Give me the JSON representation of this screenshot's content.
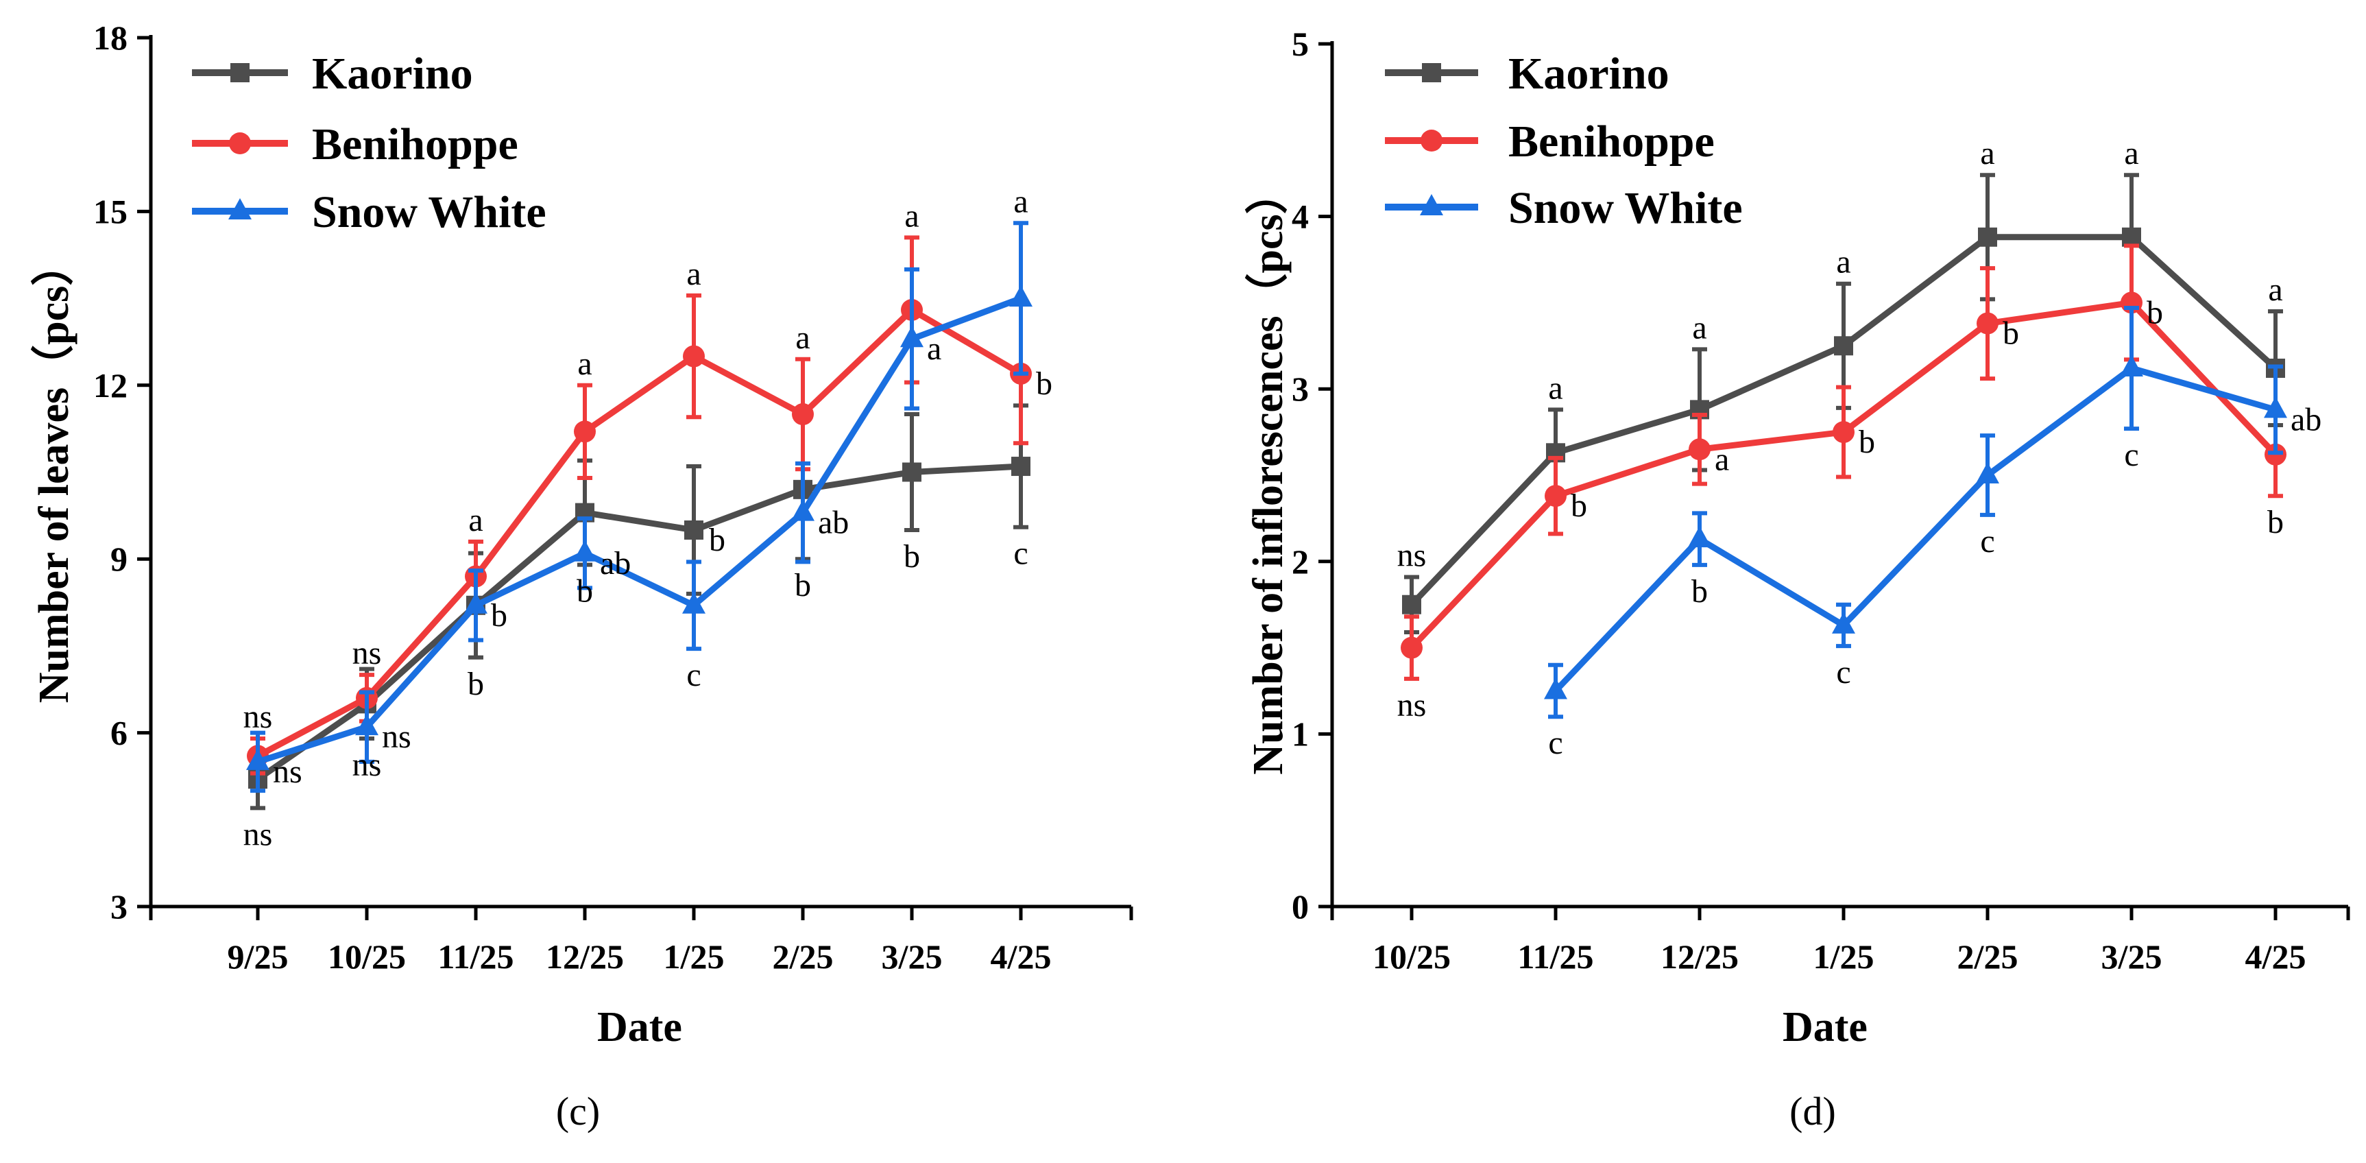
{
  "chart_data": [
    {
      "type": "line",
      "caption": "(c)",
      "xlabel": "Date",
      "ylabel": "Number of leaves（pcs）",
      "ylim": [
        3,
        18
      ],
      "yticks": [
        3,
        6,
        9,
        12,
        15,
        18
      ],
      "categories": [
        "9/25",
        "10/25",
        "11/25",
        "12/25",
        "1/25",
        "2/25",
        "3/25",
        "4/25"
      ],
      "legend": "top-left",
      "grid": false,
      "series": [
        {
          "name": "Kaorino",
          "color": "#4d4d4d",
          "marker": "square",
          "values": [
            5.2,
            6.5,
            8.2,
            9.8,
            9.5,
            10.2,
            10.5,
            10.6
          ],
          "errors": [
            0.5,
            0.6,
            0.9,
            0.9,
            1.1,
            1.2,
            1.0,
            1.05
          ]
        },
        {
          "name": "Benihoppe",
          "color": "#ef3b3b",
          "marker": "circle",
          "values": [
            5.6,
            6.6,
            8.7,
            11.2,
            12.5,
            11.5,
            13.3,
            12.2
          ],
          "errors": [
            0.3,
            0.4,
            0.6,
            0.8,
            1.05,
            0.95,
            1.25,
            1.2
          ]
        },
        {
          "name": "Snow White",
          "color": "#1a6fe0",
          "marker": "triangle",
          "values": [
            5.5,
            6.1,
            8.2,
            9.1,
            8.2,
            9.8,
            12.8,
            13.5
          ],
          "errors": [
            0.5,
            0.6,
            0.6,
            0.6,
            0.75,
            0.85,
            1.2,
            1.3
          ]
        }
      ],
      "annotations": [
        [
          "ns",
          "ns",
          "ns"
        ],
        [
          "ns",
          "ns",
          "ns"
        ],
        [
          "b",
          "a",
          "b"
        ],
        [
          "b",
          "a",
          "ab"
        ],
        [
          "b",
          "a",
          "c"
        ],
        [
          "b",
          "a",
          "ab"
        ],
        [
          "b",
          "a",
          "a"
        ],
        [
          "c",
          "b",
          "a"
        ]
      ],
      "annotation_pos": [
        [
          "below",
          "above",
          "right"
        ],
        [
          "below",
          "above",
          "right"
        ],
        [
          "below",
          "above",
          "right"
        ],
        [
          "below",
          "above",
          "right"
        ],
        [
          "right",
          "above",
          "below"
        ],
        [
          "below",
          "above",
          "right"
        ],
        [
          "below",
          "above",
          "right"
        ],
        [
          "below",
          "right",
          "above"
        ]
      ]
    },
    {
      "type": "line",
      "caption": "(d)",
      "xlabel": "Date",
      "ylabel": "Number of inflorescences（pcs）",
      "ylim": [
        0,
        5
      ],
      "yticks": [
        0,
        1,
        2,
        3,
        4,
        5
      ],
      "categories": [
        "10/25",
        "11/25",
        "12/25",
        "1/25",
        "2/25",
        "3/25",
        "4/25"
      ],
      "legend": "top-left",
      "grid": false,
      "series": [
        {
          "name": "Kaorino",
          "color": "#4d4d4d",
          "marker": "square",
          "values": [
            1.75,
            2.63,
            2.88,
            3.25,
            3.88,
            3.88,
            3.12
          ],
          "errors": [
            0.16,
            0.25,
            0.35,
            0.36,
            0.36,
            0.36,
            0.33
          ]
        },
        {
          "name": "Benihoppe",
          "color": "#ef3b3b",
          "marker": "circle",
          "values": [
            1.5,
            2.38,
            2.65,
            2.75,
            3.38,
            3.5,
            2.62
          ],
          "errors": [
            0.18,
            0.22,
            0.2,
            0.26,
            0.32,
            0.33,
            0.24
          ]
        },
        {
          "name": "Snow White",
          "color": "#1a6fe0",
          "marker": "triangle",
          "values": [
            null,
            1.25,
            2.13,
            1.63,
            2.5,
            3.12,
            2.88
          ],
          "errors": [
            null,
            0.15,
            0.15,
            0.12,
            0.23,
            0.35,
            0.25
          ]
        }
      ],
      "annotations": [
        [
          "ns",
          "ns",
          null
        ],
        [
          "a",
          "b",
          "c"
        ],
        [
          "a",
          "a",
          "b"
        ],
        [
          "a",
          "b",
          "c"
        ],
        [
          "a",
          "b",
          "c"
        ],
        [
          "a",
          "b",
          "c"
        ],
        [
          "a",
          "b",
          "ab"
        ]
      ],
      "annotation_pos": [
        [
          "above",
          "below",
          null
        ],
        [
          "above",
          "right",
          "below"
        ],
        [
          "above",
          "right",
          "below"
        ],
        [
          "above",
          "right",
          "below"
        ],
        [
          "above",
          "right",
          "below"
        ],
        [
          "above",
          "right",
          "below"
        ],
        [
          "above",
          "below",
          "right"
        ]
      ]
    }
  ]
}
